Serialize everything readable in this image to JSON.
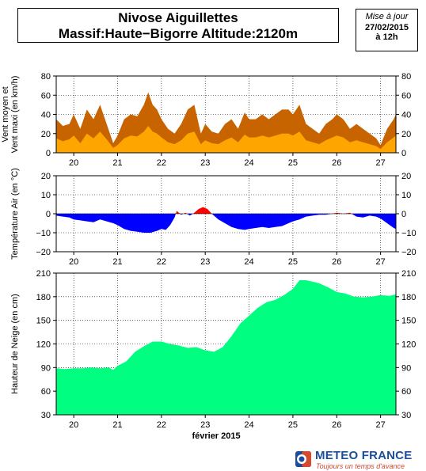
{
  "header": {
    "title_line1": "Nivose Aiguillettes",
    "title_line2": "Massif:Haute−Bigorre Altitude:2120m",
    "update_label": "Mise à jour",
    "update_date": "27/02/2015",
    "update_time": "à 12h"
  },
  "footer": {
    "brand": "METEO FRANCE",
    "tagline": "Toujours un temps d'avance"
  },
  "colors": {
    "wind_max": "#c86400",
    "wind_mean": "#ffa500",
    "temp_negative": "#0000ff",
    "temp_positive": "#ff0000",
    "snow": "#00ff80"
  },
  "chart_data": [
    {
      "id": "wind",
      "type": "area",
      "ylabel": "Vent moyen et\nVent maxi (en km/h)",
      "ylim": [
        0,
        80
      ],
      "yticks": [
        0,
        20,
        40,
        60,
        80
      ],
      "xlim": [
        19.6,
        27.35
      ],
      "xticks": [
        20,
        21,
        22,
        23,
        24,
        25,
        26,
        27
      ],
      "series": [
        {
          "key": "max",
          "x": [
            19.6,
            19.75,
            19.9,
            20.0,
            20.15,
            20.3,
            20.45,
            20.6,
            20.75,
            20.9,
            21.0,
            21.15,
            21.3,
            21.45,
            21.6,
            21.7,
            21.8,
            21.9,
            22.0,
            22.15,
            22.3,
            22.45,
            22.6,
            22.75,
            22.9,
            23.0,
            23.15,
            23.3,
            23.45,
            23.6,
            23.75,
            23.9,
            24.0,
            24.15,
            24.3,
            24.45,
            24.6,
            24.75,
            24.9,
            25.0,
            25.15,
            25.3,
            25.45,
            25.6,
            25.75,
            25.9,
            26.0,
            26.15,
            26.3,
            26.45,
            26.6,
            26.75,
            26.9,
            27.0,
            27.15,
            27.3,
            27.35
          ],
          "values": [
            35,
            28,
            30,
            40,
            25,
            45,
            35,
            50,
            30,
            10,
            18,
            35,
            40,
            38,
            50,
            63,
            50,
            45,
            35,
            25,
            20,
            30,
            45,
            50,
            20,
            30,
            22,
            20,
            30,
            35,
            25,
            42,
            35,
            35,
            40,
            35,
            40,
            45,
            45,
            40,
            50,
            30,
            25,
            20,
            30,
            35,
            40,
            35,
            25,
            30,
            25,
            20,
            15,
            8,
            25,
            35,
            40
          ]
        },
        {
          "key": "mean",
          "x": [
            19.6,
            19.75,
            19.9,
            20.0,
            20.15,
            20.3,
            20.45,
            20.6,
            20.75,
            20.9,
            21.0,
            21.15,
            21.3,
            21.45,
            21.6,
            21.7,
            21.8,
            21.9,
            22.0,
            22.15,
            22.3,
            22.45,
            22.6,
            22.75,
            22.9,
            23.0,
            23.15,
            23.3,
            23.45,
            23.6,
            23.75,
            23.9,
            24.0,
            24.15,
            24.3,
            24.45,
            24.6,
            24.75,
            24.9,
            25.0,
            25.15,
            25.3,
            25.45,
            25.6,
            25.75,
            25.9,
            26.0,
            26.15,
            26.3,
            26.45,
            26.6,
            26.75,
            26.9,
            27.0,
            27.15,
            27.3,
            27.35
          ],
          "values": [
            15,
            12,
            14,
            18,
            10,
            20,
            15,
            22,
            14,
            5,
            8,
            15,
            18,
            17,
            22,
            28,
            22,
            20,
            16,
            11,
            9,
            13,
            20,
            22,
            9,
            13,
            10,
            9,
            13,
            16,
            11,
            19,
            16,
            16,
            18,
            16,
            18,
            20,
            20,
            18,
            22,
            13,
            11,
            9,
            13,
            16,
            18,
            16,
            11,
            13,
            11,
            9,
            7,
            4,
            11,
            16,
            18
          ]
        }
      ]
    },
    {
      "id": "temp",
      "type": "area",
      "ylabel": "Température Air (en °C)",
      "ylim": [
        -20,
        20
      ],
      "yticks": [
        -20,
        -10,
        0,
        10,
        20
      ],
      "xlim": [
        19.6,
        27.35
      ],
      "xticks": [
        20,
        21,
        22,
        23,
        24,
        25,
        26,
        27
      ],
      "x": [
        19.6,
        19.75,
        19.9,
        20.0,
        20.15,
        20.3,
        20.45,
        20.6,
        20.75,
        20.9,
        21.0,
        21.15,
        21.3,
        21.45,
        21.6,
        21.75,
        21.9,
        22.0,
        22.1,
        22.2,
        22.3,
        22.35,
        22.45,
        22.55,
        22.65,
        22.75,
        22.85,
        22.95,
        23.05,
        23.15,
        23.3,
        23.45,
        23.6,
        23.75,
        23.9,
        24.0,
        24.15,
        24.3,
        24.45,
        24.6,
        24.75,
        24.9,
        25.0,
        25.15,
        25.3,
        25.45,
        25.6,
        25.75,
        25.9,
        26.0,
        26.15,
        26.3,
        26.45,
        26.6,
        26.75,
        26.9,
        27.0,
        27.15,
        27.3,
        27.35
      ],
      "values": [
        -1,
        -1.5,
        -2,
        -3,
        -3.5,
        -4,
        -4.5,
        -3,
        -4,
        -5,
        -6,
        -8,
        -9,
        -9.5,
        -10,
        -10,
        -9,
        -8,
        -8.5,
        -6,
        -2,
        1.5,
        -0.5,
        0.5,
        -1,
        0.5,
        2.5,
        3.5,
        2.5,
        0,
        -3,
        -5,
        -7,
        -8,
        -8.5,
        -8,
        -7.5,
        -7,
        -7.5,
        -7,
        -6.5,
        -5,
        -4,
        -3,
        -1.5,
        -1,
        -0.5,
        -0.5,
        0,
        0.5,
        0,
        0.5,
        -1.5,
        -2,
        -1,
        -1.5,
        -2.5,
        -5,
        -7.5,
        -8
      ]
    },
    {
      "id": "snow",
      "type": "area",
      "xlabel": "février 2015",
      "ylabel": "Hauteur de Neige (en cm)",
      "ylim": [
        30,
        210
      ],
      "yticks": [
        30,
        60,
        90,
        120,
        150,
        180,
        210
      ],
      "xlim": [
        19.6,
        27.35
      ],
      "xticks": [
        20,
        21,
        22,
        23,
        24,
        25,
        26,
        27
      ],
      "x": [
        19.6,
        19.8,
        20.0,
        20.2,
        20.4,
        20.6,
        20.8,
        20.9,
        21.0,
        21.2,
        21.4,
        21.6,
        21.8,
        22.0,
        22.2,
        22.4,
        22.6,
        22.8,
        23.0,
        23.2,
        23.4,
        23.6,
        23.8,
        24.0,
        24.2,
        24.4,
        24.6,
        24.8,
        25.0,
        25.15,
        25.3,
        25.45,
        25.6,
        25.8,
        26.0,
        26.2,
        26.4,
        26.6,
        26.8,
        27.0,
        27.2,
        27.35
      ],
      "values": [
        89,
        88,
        89,
        89,
        90,
        89,
        90,
        87,
        92,
        98,
        110,
        117,
        123,
        123,
        120,
        118,
        115,
        116,
        112,
        110,
        116,
        130,
        146,
        156,
        166,
        173,
        176,
        182,
        190,
        201,
        201,
        199,
        197,
        192,
        186,
        184,
        180,
        179,
        180,
        182,
        181,
        183
      ]
    }
  ]
}
